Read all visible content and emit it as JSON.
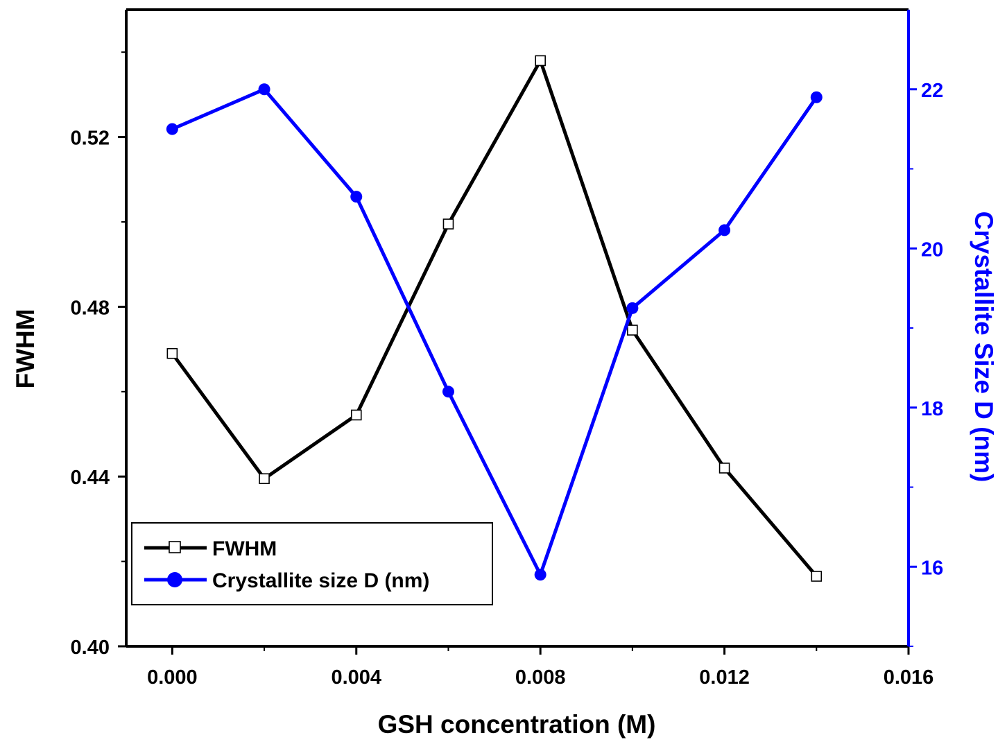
{
  "chart_data": {
    "type": "line",
    "xlabel": "GSH concentration (M)",
    "ylabel_left": "FWHM",
    "ylabel_right": "Crystallite Size D (nm)",
    "xlim": [
      -0.001,
      0.016
    ],
    "ylim_left": [
      0.4,
      0.55
    ],
    "ylim_right": [
      15.0,
      23.0
    ],
    "x_ticks": [
      "0.000",
      "0.004",
      "0.008",
      "0.012",
      "0.016"
    ],
    "y_left_ticks": [
      "0.40",
      "0.44",
      "0.48",
      "0.52"
    ],
    "y_right_ticks": [
      "16",
      "18",
      "20",
      "22"
    ],
    "grid": false,
    "legend_position": "bottom-left",
    "series": [
      {
        "name": "FWHM",
        "axis": "left",
        "color": "#000000",
        "marker": "open-square",
        "x": [
          0.0,
          0.002,
          0.004,
          0.006,
          0.008,
          0.01,
          0.012,
          0.014
        ],
        "y": [
          0.469,
          0.4395,
          0.4545,
          0.4995,
          0.538,
          0.4745,
          0.442,
          0.4165
        ]
      },
      {
        "name": "Crystallite size D (nm)",
        "axis": "right",
        "color": "#0000ff",
        "marker": "filled-circle",
        "x": [
          0.0,
          0.002,
          0.004,
          0.006,
          0.008,
          0.01,
          0.012,
          0.014
        ],
        "y": [
          21.5,
          22.0,
          20.65,
          18.2,
          15.9,
          19.25,
          20.23,
          21.9
        ]
      }
    ]
  }
}
